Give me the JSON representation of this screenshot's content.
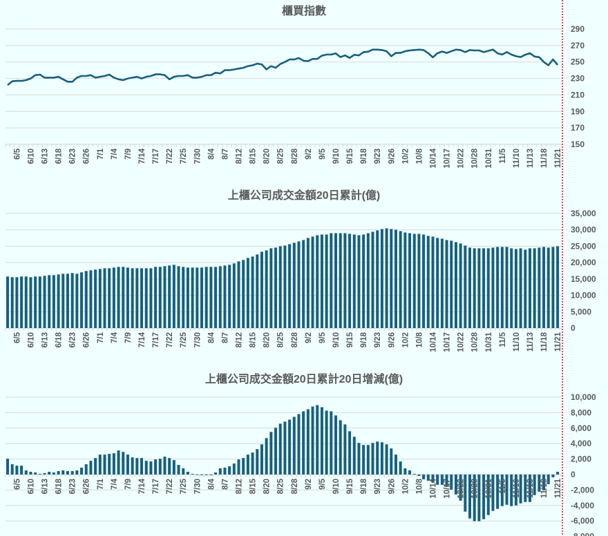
{
  "colors": {
    "background": "#f0ffff",
    "series": "#17607f",
    "grid": "#d9d9d9",
    "text": "#595959",
    "marker_line": "#ff0000"
  },
  "x_labels": [
    "6/5",
    "6/10",
    "6/13",
    "6/18",
    "6/23",
    "6/26",
    "7/1",
    "7/4",
    "7/9",
    "7/14",
    "7/17",
    "7/22",
    "7/25",
    "7/30",
    "8/4",
    "8/7",
    "8/12",
    "8/15",
    "8/20",
    "8/25",
    "8/28",
    "9/2",
    "9/5",
    "9/10",
    "9/15",
    "9/18",
    "9/23",
    "9/26",
    "10/2",
    "10/8",
    "10/14",
    "10/17",
    "10/22",
    "10/28",
    "10/31",
    "11/5",
    "11/10",
    "11/13",
    "11/18",
    "11/21"
  ],
  "chart_data": [
    {
      "type": "line",
      "title": "櫃買指數",
      "ylim": [
        150,
        290
      ],
      "yticks": [
        150,
        170,
        190,
        210,
        230,
        250,
        270,
        290
      ],
      "ytick_labels": [
        "150",
        "170",
        "190",
        "210",
        "230",
        "250",
        "270",
        "290"
      ],
      "grid": true,
      "values": [
        222,
        226.5,
        227,
        227,
        228,
        230,
        234,
        234.7,
        231,
        231,
        231,
        232,
        229,
        226,
        226,
        231,
        233,
        233,
        234,
        231,
        232,
        233,
        234.7,
        231,
        229,
        228,
        230,
        231,
        232,
        230,
        232,
        233,
        235,
        235,
        234,
        229,
        232,
        233,
        233,
        234,
        231,
        231,
        232,
        234,
        234,
        237,
        236,
        240,
        240,
        241,
        242,
        243,
        245,
        246,
        248,
        247,
        241,
        245,
        243,
        247.5,
        250,
        253,
        253,
        254.8,
        251.5,
        251,
        253.7,
        253.7,
        257.6,
        259,
        259,
        260.4,
        256,
        258,
        255,
        258.7,
        258,
        261.8,
        262.5,
        265,
        265,
        264.5,
        263,
        257,
        261,
        261,
        263,
        264,
        264.5,
        265,
        264.5,
        260.7,
        255.6,
        260.6,
        262.7,
        261,
        263,
        265,
        264.5,
        262,
        264.5,
        264,
        264,
        262,
        263.5,
        265,
        260.6,
        259,
        262,
        259,
        257,
        256,
        258.8,
        260.6,
        256.6,
        255.8,
        250,
        246,
        253,
        246.4
      ]
    },
    {
      "type": "bar",
      "title": "上櫃公司成交金額20日累計(億)",
      "ylim": [
        0,
        35000
      ],
      "yticks": [
        0,
        5000,
        10000,
        15000,
        20000,
        25000,
        30000,
        35000
      ],
      "ytick_labels": [
        "0",
        "5,000",
        "10,000",
        "15,000",
        "20,000",
        "25,000",
        "30,000",
        "35,000"
      ],
      "grid": true,
      "values": [
        15750,
        15540,
        15540,
        15750,
        15750,
        15540,
        15750,
        15750,
        15960,
        16170,
        16170,
        16380,
        16590,
        16590,
        16800,
        16590,
        17010,
        17430,
        17640,
        17850,
        18060,
        18270,
        18270,
        18480,
        18690,
        18690,
        18480,
        18270,
        18270,
        18270,
        18270,
        18270,
        18690,
        18690,
        18900,
        19110,
        19320,
        18900,
        18690,
        18480,
        18480,
        18480,
        18480,
        18690,
        18690,
        18690,
        18900,
        19110,
        19320,
        19740,
        20370,
        20790,
        21420,
        21840,
        22470,
        23310,
        23730,
        24360,
        24570,
        24990,
        25200,
        25620,
        26040,
        26460,
        26880,
        27510,
        27930,
        28350,
        28560,
        28560,
        28980,
        28980,
        28980,
        28980,
        28770,
        28560,
        28350,
        28560,
        28980,
        29400,
        29820,
        30240,
        30450,
        30240,
        30030,
        29610,
        29190,
        28980,
        28770,
        28770,
        28560,
        28140,
        27930,
        27510,
        27300,
        26880,
        26670,
        26250,
        25830,
        25200,
        24570,
        24360,
        24360,
        24360,
        24360,
        24570,
        24780,
        24780,
        24780,
        24360,
        24150,
        24360,
        23940,
        24360,
        24360,
        24570,
        24780,
        24570,
        24780,
        24990
      ]
    },
    {
      "type": "bar",
      "title": "上櫃公司成交金額20日累計20日增減(億)",
      "ylim": [
        -8000,
        10000
      ],
      "yticks": [
        -8000,
        -6000,
        -4000,
        -2000,
        0,
        2000,
        4000,
        6000,
        8000,
        10000
      ],
      "ytick_labels": [
        "-8,000",
        "-6,000",
        "-4,000",
        "-2,000",
        "0",
        "2,000",
        "4,000",
        "6,000",
        "8,000",
        "10,000"
      ],
      "grid": true,
      "values": [
        2040,
        1330,
        1150,
        1150,
        530,
        355,
        265,
        90,
        180,
        355,
        265,
        445,
        530,
        445,
        445,
        530,
        890,
        1330,
        1775,
        2130,
        2575,
        2575,
        2665,
        2750,
        3110,
        2930,
        2575,
        2220,
        2130,
        2130,
        1775,
        1690,
        1950,
        2040,
        2310,
        2130,
        1865,
        1245,
        800,
        355,
        90,
        0,
        -90,
        -90,
        -90,
        265,
        800,
        890,
        1065,
        1420,
        1950,
        2130,
        2575,
        2840,
        3285,
        3905,
        4705,
        5505,
        6040,
        6570,
        6840,
        7100,
        7460,
        7815,
        8170,
        8440,
        8790,
        8970,
        8700,
        8260,
        8170,
        7640,
        7015,
        6480,
        5595,
        4885,
        4085,
        3820,
        3820,
        4085,
        4260,
        4170,
        3905,
        3375,
        2575,
        1690,
        800,
        530,
        90,
        -180,
        -620,
        -800,
        -1065,
        -1330,
        -1330,
        -1600,
        -1950,
        -2575,
        -3375,
        -4795,
        -5680,
        -6040,
        -6040,
        -5770,
        -5240,
        -4705,
        -4440,
        -4085,
        -3905,
        -4085,
        -3995,
        -3730,
        -3550,
        -3550,
        -2665,
        -2220,
        -2040,
        -1245,
        -355,
        355
      ]
    }
  ]
}
